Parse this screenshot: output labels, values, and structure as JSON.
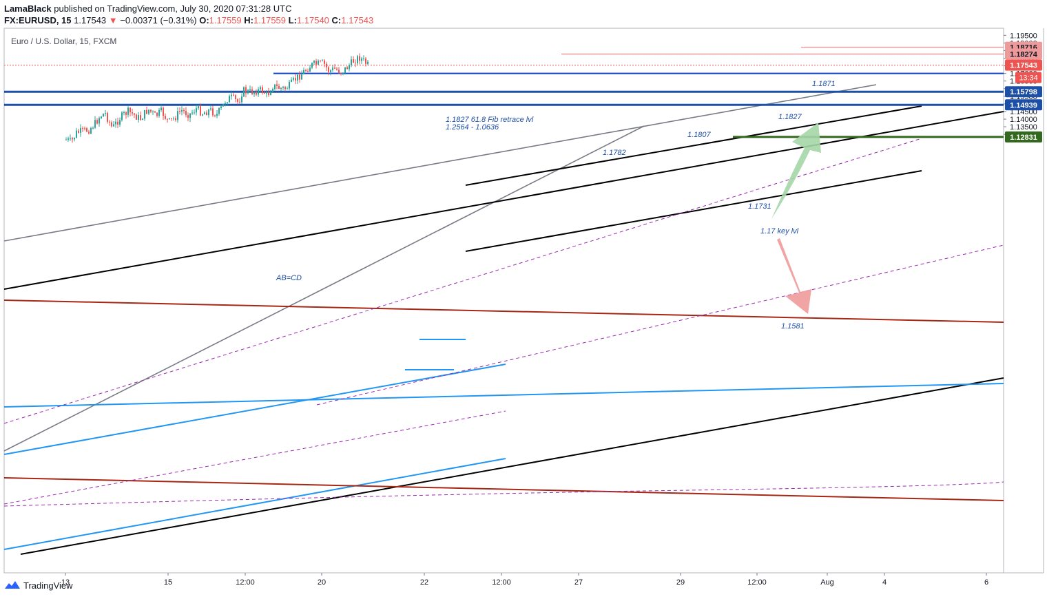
{
  "header": {
    "author": "LamaBlack",
    "published_text": "published on TradingView.com, July 30, 2020 07:31:28 UTC",
    "symbol": "FX:EURUSD, 15",
    "last": "1.17543",
    "change_arrow": "▼",
    "change": "−0.00371 (−0.31%)",
    "o_label": "O:",
    "o_value": "1.17559",
    "h_label": "H:",
    "h_value": "1.17559",
    "l_label": "L:",
    "l_value": "1.17540",
    "c_label": "C:",
    "c_value": "1.17543"
  },
  "footer": {
    "brand": "TradingView",
    "logo_icon": "tradingview-logo-icon"
  },
  "colors": {
    "up": "#26a69a",
    "down": "#ef5350",
    "blue_line": "#0d3fd1",
    "dark_blue": "#1c4fa8",
    "light_blue": "#2196f3",
    "brown": "#a52714",
    "grey": "#787b86",
    "purple": "#9c27b0",
    "fib_red": "#ef9a9a",
    "green": "#33691e"
  },
  "chart_data": {
    "type": "candlestick",
    "title": "Euro / U.S. Dollar, 15, FXCM",
    "x_ticks": [
      "13",
      "15",
      "12:00",
      "20",
      "22",
      "12:00",
      "27",
      "29",
      "12:00",
      "Aug",
      "4",
      "6"
    ],
    "y_ticks": [
      "1.19500",
      "1.19000",
      "1.18500",
      "1.18000",
      "1.17500",
      "1.17000",
      "1.16500",
      "1.16000",
      "1.15500",
      "1.15000",
      "1.14500",
      "1.14000",
      "1.13500",
      "1.13000"
    ],
    "ylim": [
      1.124,
      1.1965
    ],
    "price_series_close": [
      [
        0.0,
        1.1265
      ],
      [
        0.05,
        1.125
      ],
      [
        0.1,
        1.131
      ],
      [
        0.16,
        1.132
      ],
      [
        0.22,
        1.133
      ],
      [
        0.28,
        1.137
      ],
      [
        0.33,
        1.142
      ],
      [
        0.38,
        1.144
      ],
      [
        0.45,
        1.134
      ],
      [
        0.52,
        1.1405
      ],
      [
        0.6,
        1.145
      ],
      [
        0.66,
        1.143
      ],
      [
        0.72,
        1.14
      ],
      [
        0.8,
        1.1465
      ],
      [
        0.87,
        1.142
      ],
      [
        0.93,
        1.145
      ],
      [
        1.0,
        1.138
      ],
      [
        1.06,
        1.141
      ],
      [
        1.12,
        1.146
      ],
      [
        1.2,
        1.143
      ],
      [
        1.27,
        1.147
      ],
      [
        1.33,
        1.144
      ],
      [
        1.4,
        1.146
      ],
      [
        1.47,
        1.143
      ],
      [
        1.53,
        1.149
      ],
      [
        1.56,
        1.153
      ],
      [
        1.61,
        1.154
      ],
      [
        1.68,
        1.151
      ],
      [
        1.72,
        1.159
      ],
      [
        1.78,
        1.1575
      ],
      [
        1.84,
        1.1585
      ],
      [
        1.91,
        1.159
      ],
      [
        1.96,
        1.1555
      ],
      [
        2.01,
        1.162
      ],
      [
        2.07,
        1.1605
      ],
      [
        2.13,
        1.16
      ],
      [
        2.18,
        1.162
      ],
      [
        2.23,
        1.166
      ],
      [
        2.29,
        1.1695
      ],
      [
        2.33,
        1.172
      ],
      [
        2.39,
        1.1755
      ],
      [
        2.44,
        1.176
      ],
      [
        2.51,
        1.1765
      ],
      [
        2.56,
        1.1715
      ],
      [
        2.62,
        1.173
      ],
      [
        2.68,
        1.171
      ],
      [
        2.73,
        1.1735
      ],
      [
        2.77,
        1.176
      ],
      [
        2.81,
        1.179
      ],
      [
        2.86,
        1.1805
      ],
      [
        2.9,
        1.178
      ],
      [
        2.94,
        1.1754
      ]
    ],
    "axis_labels": [
      {
        "value": "1.18716",
        "price": 1.18716,
        "color": "#ef9a9a",
        "text_color": "#131722"
      },
      {
        "value": "1.18274",
        "price": 1.18274,
        "color": "#ef9a9a",
        "text_color": "#131722"
      },
      {
        "value": "1.17543",
        "price": 1.17543,
        "color": "#ef5350",
        "text_color": "#ffffff"
      },
      {
        "value": "1.15798",
        "price": 1.15798,
        "color": "#1c4fa8",
        "text_color": "#ffffff"
      },
      {
        "value": "1.14939",
        "price": 1.14939,
        "color": "#1c4fa8",
        "text_color": "#ffffff"
      },
      {
        "value": "1.12831",
        "price": 1.12831,
        "color": "#33691e",
        "text_color": "#ffffff"
      }
    ],
    "countdown": "13:34",
    "annotations": [
      {
        "text": "1.1871",
        "color": "#1c4fa8"
      },
      {
        "text": "1.1827",
        "color": "#1c4fa8"
      },
      {
        "text": "1.1807",
        "color": "#1c4fa8"
      },
      {
        "text": "1.1782",
        "color": "#1c4fa8"
      },
      {
        "text": "1.1827 61.8 Fib retrace lvl",
        "color": "#1c4fa8"
      },
      {
        "text": "1.2564 - 1.0636",
        "color": "#1c4fa8"
      },
      {
        "text": "1.1731",
        "color": "#1c4fa8"
      },
      {
        "text": "1.17  key lvl",
        "color": "#1c4fa8"
      },
      {
        "text": "AB=CD",
        "color": "#1c4fa8"
      },
      {
        "text": "1.1581",
        "color": "#1c4fa8"
      }
    ]
  }
}
